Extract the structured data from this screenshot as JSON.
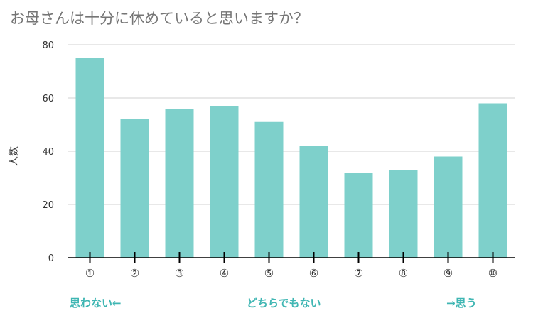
{
  "chart_data": {
    "type": "bar",
    "title": "お母さんは十分に休めていると思いますか？",
    "xlabel": "",
    "ylabel": "人数",
    "categories": [
      "①",
      "②",
      "③",
      "④",
      "⑤",
      "⑥",
      "⑦",
      "⑧",
      "⑨",
      "⑩"
    ],
    "values": [
      75,
      52,
      56,
      57,
      51,
      42,
      32,
      33,
      38,
      58
    ],
    "ylim": [
      0,
      80
    ],
    "yticks": [
      0,
      20,
      40,
      60,
      80
    ],
    "grid": true,
    "legend": "none",
    "bar_color": "#7ed0cb",
    "annotations": {
      "left": "思わない←",
      "middle": "どちらでもない",
      "right": "→思う"
    },
    "annotation_color": "#3fb6b3"
  }
}
